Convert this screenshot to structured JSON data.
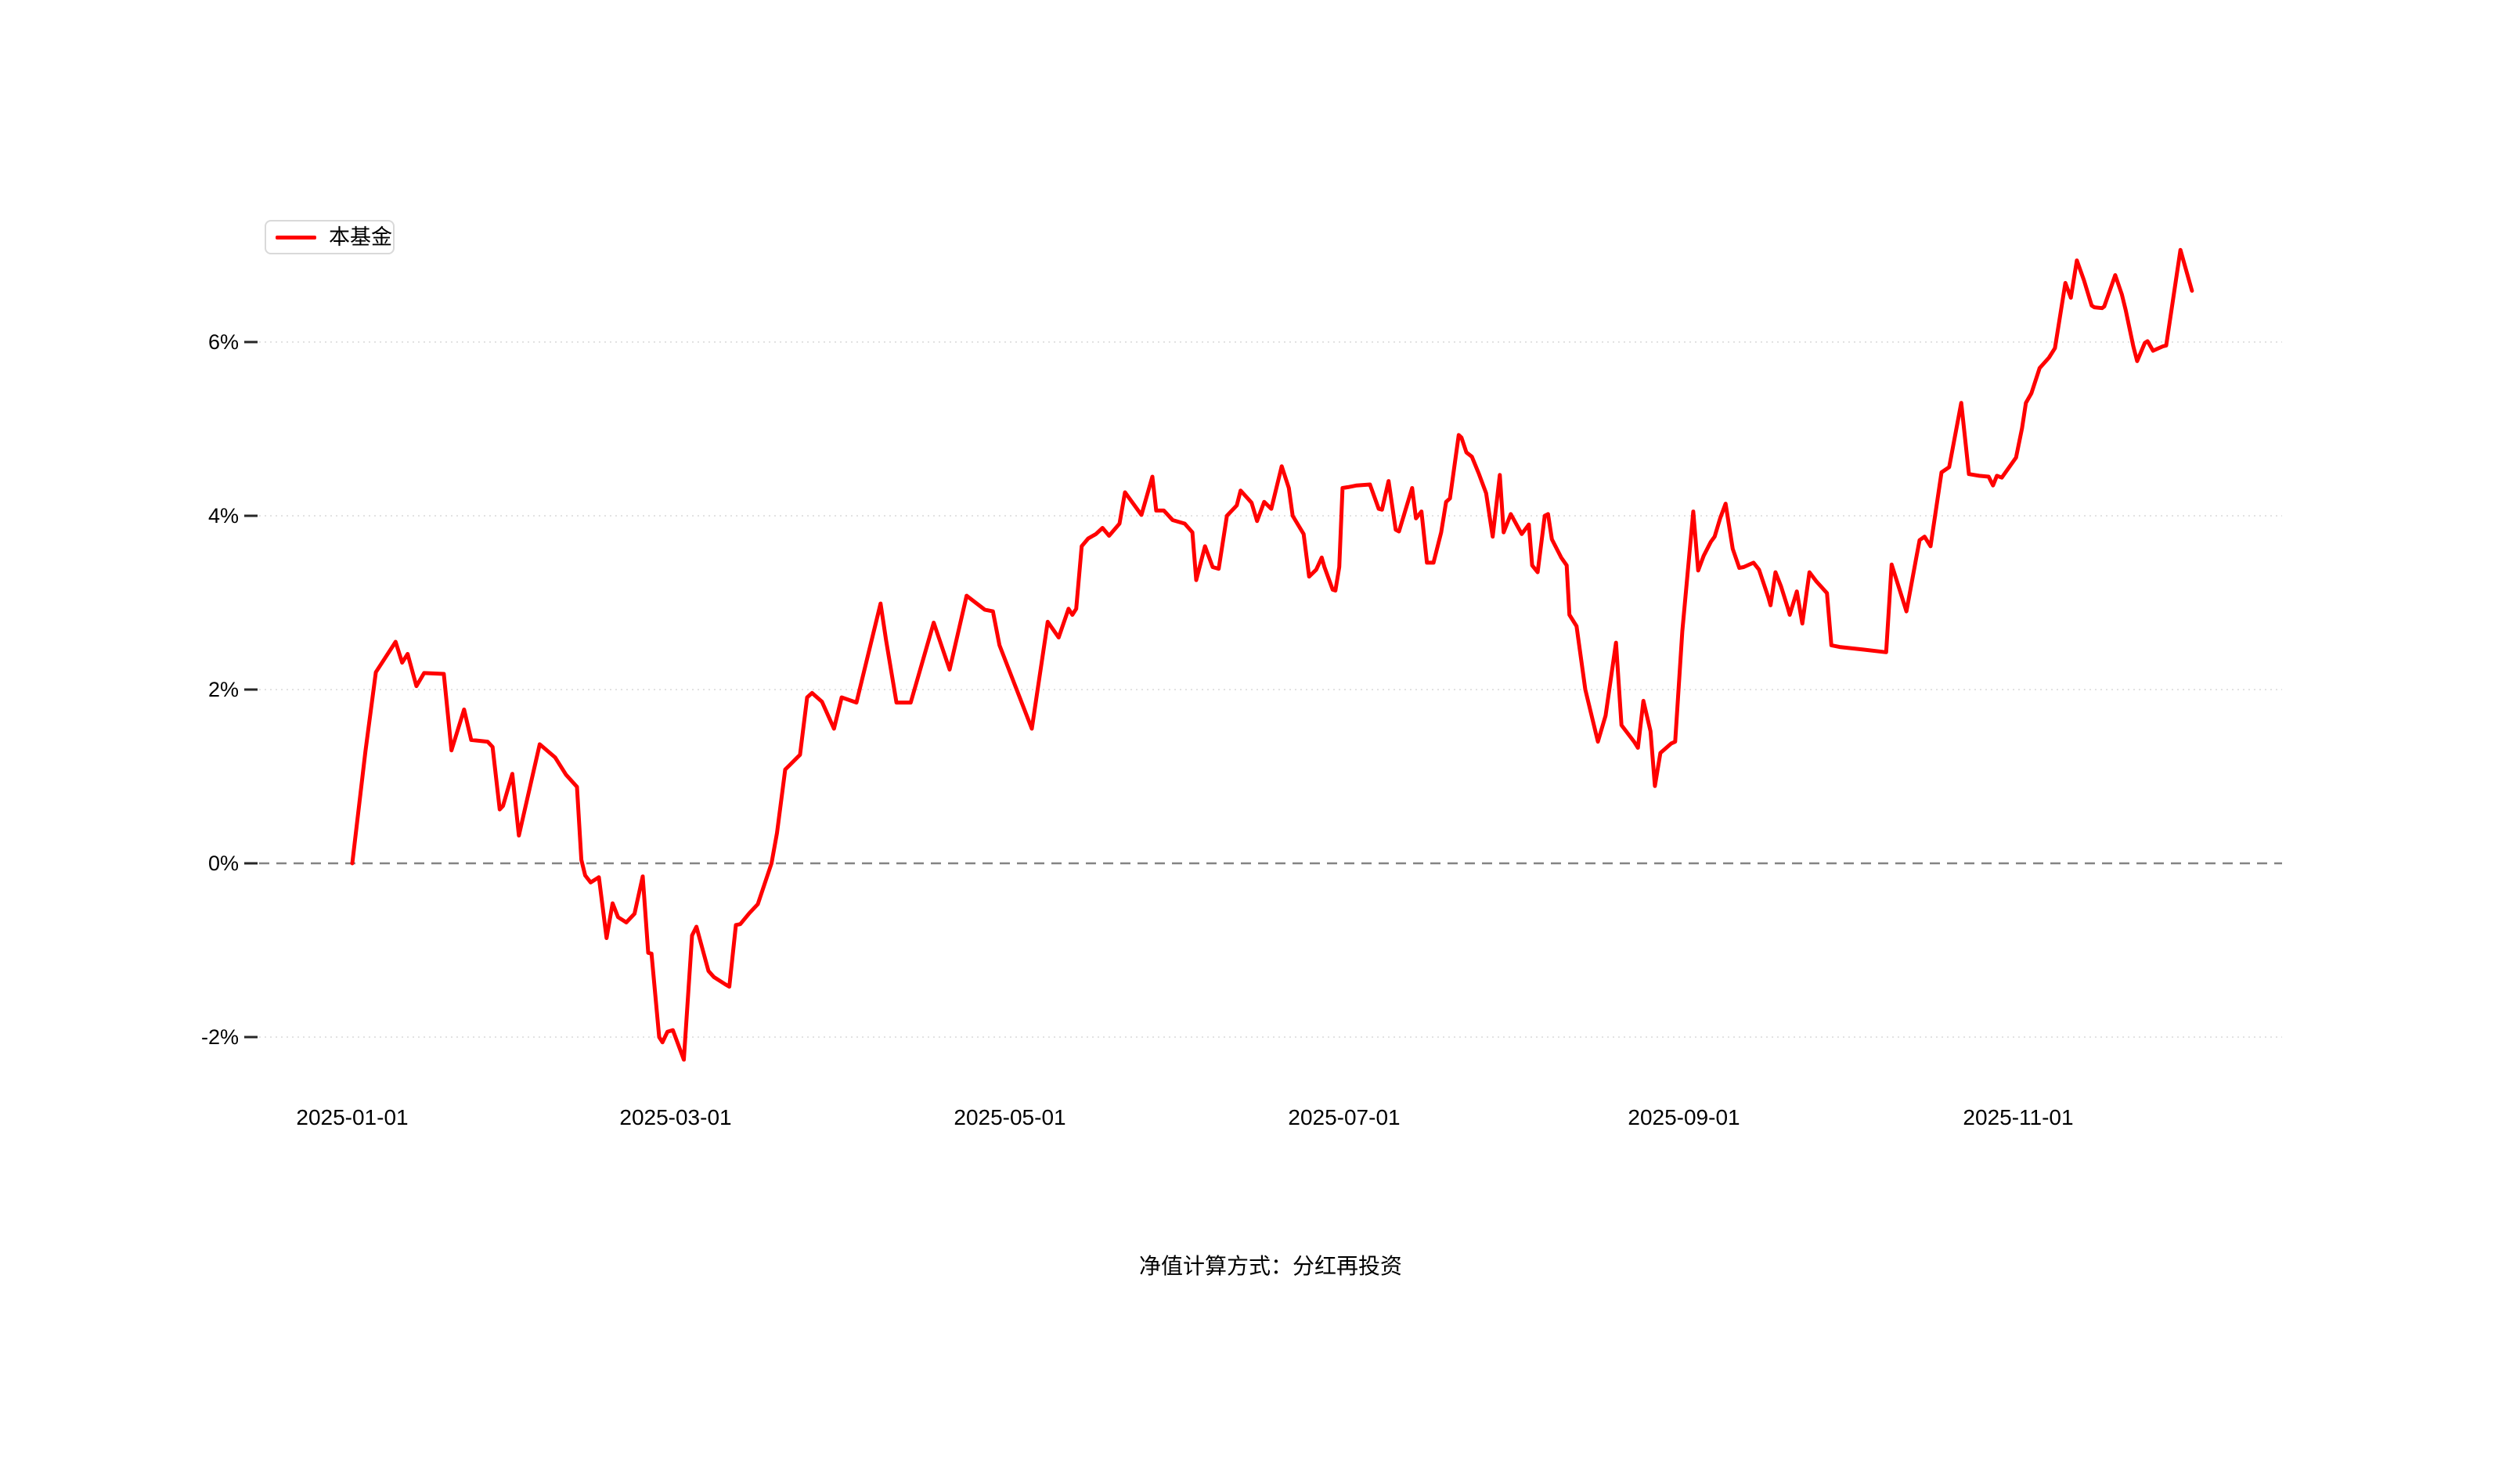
{
  "legend": {
    "label": "本基金"
  },
  "footer": {
    "caption": "净值计算方式：分红再投资"
  },
  "chart_data": {
    "type": "line",
    "title": "",
    "xlabel": "",
    "ylabel": "",
    "unit": "%",
    "grid": true,
    "legend_position": "top-left",
    "x_axis": {
      "ticks": [
        {
          "day": 0,
          "label": "2025-01-01"
        },
        {
          "day": 59,
          "label": "2025-03-01"
        },
        {
          "day": 120,
          "label": "2025-05-01"
        },
        {
          "day": 181,
          "label": "2025-07-01"
        },
        {
          "day": 243,
          "label": "2025-09-01"
        },
        {
          "day": 304,
          "label": "2025-11-01"
        }
      ],
      "range_days": [
        -17,
        352
      ]
    },
    "y_axis": {
      "ticks": [
        {
          "v": 6,
          "label": "6%"
        },
        {
          "v": 4,
          "label": "4%"
        },
        {
          "v": 2,
          "label": "2%"
        },
        {
          "v": 0,
          "label": "0%"
        },
        {
          "v": -2,
          "label": "-2%"
        }
      ],
      "ylim": [
        -3.1,
        7.2
      ]
    },
    "zero_line": {
      "style": "dashed",
      "color": "#848484"
    },
    "gridline_color": "#e2e2e2",
    "colors": {
      "series_red": "#ff0000",
      "text": "#000000"
    },
    "series": [
      {
        "name": "本基金",
        "color": "#ff0000",
        "points": [
          [
            0,
            0
          ],
          [
            2.4,
            1.29
          ],
          [
            4.3,
            2.2
          ],
          [
            7.9,
            2.55
          ],
          [
            9.1,
            2.31
          ],
          [
            10.1,
            2.41
          ],
          [
            11.7,
            2.04
          ],
          [
            13.1,
            2.19
          ],
          [
            16.7,
            2.18
          ],
          [
            18.1,
            1.3
          ],
          [
            20.4,
            1.77
          ],
          [
            21.7,
            1.42
          ],
          [
            24.7,
            1.4
          ],
          [
            25.6,
            1.34
          ],
          [
            26.9,
            0.62
          ],
          [
            27.5,
            0.66
          ],
          [
            29.2,
            1.03
          ],
          [
            30.4,
            0.32
          ],
          [
            34.2,
            1.37
          ],
          [
            37,
            1.22
          ],
          [
            39,
            1.02
          ],
          [
            41,
            0.88
          ],
          [
            41.8,
            0.04
          ],
          [
            42.5,
            -0.14
          ],
          [
            43.5,
            -0.22
          ],
          [
            45,
            -0.16
          ],
          [
            46.4,
            -0.86
          ],
          [
            47.5,
            -0.46
          ],
          [
            48.5,
            -0.62
          ],
          [
            50,
            -0.68
          ],
          [
            51.5,
            -0.58
          ],
          [
            53,
            -0.15
          ],
          [
            54,
            -1.03
          ],
          [
            54.6,
            -1.04
          ],
          [
            56,
            -2
          ],
          [
            56.6,
            -2.06
          ],
          [
            57.5,
            -1.94
          ],
          [
            58.5,
            -1.92
          ],
          [
            60.5,
            -2.26
          ],
          [
            62,
            -0.83
          ],
          [
            62.8,
            -0.73
          ],
          [
            65,
            -1.24
          ],
          [
            66,
            -1.31
          ],
          [
            68,
            -1.39
          ],
          [
            68.8,
            -1.42
          ],
          [
            70,
            -0.71
          ],
          [
            70.8,
            -0.7
          ],
          [
            72.5,
            -0.57
          ],
          [
            74,
            -0.47
          ],
          [
            76.5,
            0
          ],
          [
            77.5,
            0.35
          ],
          [
            79,
            1.08
          ],
          [
            79.8,
            1.13
          ],
          [
            81.7,
            1.25
          ],
          [
            83,
            1.91
          ],
          [
            83.9,
            1.96
          ],
          [
            85.7,
            1.86
          ],
          [
            87.9,
            1.55
          ],
          [
            89.3,
            1.91
          ],
          [
            92,
            1.85
          ],
          [
            96.4,
            2.99
          ],
          [
            97.4,
            2.57
          ],
          [
            99.3,
            1.85
          ],
          [
            101.9,
            1.85
          ],
          [
            106.1,
            2.77
          ],
          [
            109,
            2.23
          ],
          [
            112.1,
            3.08
          ],
          [
            115.4,
            2.92
          ],
          [
            116.9,
            2.9
          ],
          [
            118.1,
            2.51
          ],
          [
            124,
            1.55
          ],
          [
            126.9,
            2.78
          ],
          [
            128.9,
            2.6
          ],
          [
            130.7,
            2.93
          ],
          [
            131.4,
            2.86
          ],
          [
            132.1,
            2.93
          ],
          [
            133.1,
            3.65
          ],
          [
            134.3,
            3.74
          ],
          [
            135.7,
            3.79
          ],
          [
            136.9,
            3.86
          ],
          [
            138.1,
            3.77
          ],
          [
            140,
            3.91
          ],
          [
            141,
            4.27
          ],
          [
            144,
            4.01
          ],
          [
            146,
            4.45
          ],
          [
            146.7,
            4.06
          ],
          [
            148.1,
            4.06
          ],
          [
            149.7,
            3.95
          ],
          [
            151.9,
            3.91
          ],
          [
            153.3,
            3.81
          ],
          [
            154,
            3.26
          ],
          [
            155.6,
            3.65
          ],
          [
            157,
            3.41
          ],
          [
            158.1,
            3.39
          ],
          [
            159.6,
            4
          ],
          [
            161.4,
            4.12
          ],
          [
            162.1,
            4.29
          ],
          [
            163.4,
            4.2
          ],
          [
            164.1,
            4.15
          ],
          [
            165.1,
            3.94
          ],
          [
            166.4,
            4.16
          ],
          [
            167.7,
            4.08
          ],
          [
            169.6,
            4.57
          ],
          [
            170.9,
            4.32
          ],
          [
            171.6,
            4
          ],
          [
            173.6,
            3.79
          ],
          [
            174.6,
            3.3
          ],
          [
            175.9,
            3.38
          ],
          [
            176.9,
            3.52
          ],
          [
            177.4,
            3.41
          ],
          [
            178.9,
            3.15
          ],
          [
            179.4,
            3.14
          ],
          [
            180.1,
            3.41
          ],
          [
            180.7,
            4.32
          ],
          [
            181.7,
            4.33
          ],
          [
            183.3,
            4.35
          ],
          [
            185.7,
            4.36
          ],
          [
            187.3,
            4.08
          ],
          [
            187.9,
            4.07
          ],
          [
            189.1,
            4.4
          ],
          [
            190.4,
            3.84
          ],
          [
            191,
            3.82
          ],
          [
            193.4,
            4.32
          ],
          [
            194.1,
            3.97
          ],
          [
            195.1,
            4.05
          ],
          [
            196.1,
            3.46
          ],
          [
            197.3,
            3.46
          ],
          [
            198.7,
            3.81
          ],
          [
            199.6,
            4.16
          ],
          [
            200.3,
            4.2
          ],
          [
            201.9,
            4.93
          ],
          [
            202.4,
            4.9
          ],
          [
            203.3,
            4.73
          ],
          [
            204.3,
            4.68
          ],
          [
            205.6,
            4.48
          ],
          [
            206.9,
            4.26
          ],
          [
            208.1,
            3.76
          ],
          [
            209.4,
            4.47
          ],
          [
            210.1,
            3.81
          ],
          [
            211.4,
            4.02
          ],
          [
            213.4,
            3.79
          ],
          [
            214.7,
            3.9
          ],
          [
            215.3,
            3.43
          ],
          [
            216.3,
            3.35
          ],
          [
            217.6,
            4
          ],
          [
            218.2,
            4.02
          ],
          [
            218.9,
            3.73
          ],
          [
            220.6,
            3.52
          ],
          [
            221.6,
            3.43
          ],
          [
            222.1,
            2.86
          ],
          [
            223.4,
            2.73
          ],
          [
            225,
            2
          ],
          [
            227.3,
            1.4
          ],
          [
            228.7,
            1.7
          ],
          [
            230.6,
            2.54
          ],
          [
            231.6,
            1.59
          ],
          [
            233.9,
            1.4
          ],
          [
            234.6,
            1.33
          ],
          [
            235.6,
            1.87
          ],
          [
            236.9,
            1.52
          ],
          [
            237.7,
            0.89
          ],
          [
            238.7,
            1.27
          ],
          [
            240.7,
            1.38
          ],
          [
            241.4,
            1.4
          ],
          [
            242.7,
            2.67
          ],
          [
            244.7,
            4.05
          ],
          [
            245.6,
            3.37
          ],
          [
            246.6,
            3.54
          ],
          [
            247.9,
            3.7
          ],
          [
            248.6,
            3.76
          ],
          [
            249.6,
            3.97
          ],
          [
            250.6,
            4.14
          ],
          [
            251.9,
            3.62
          ],
          [
            253.1,
            3.4
          ],
          [
            253.9,
            3.41
          ],
          [
            255.7,
            3.46
          ],
          [
            256.7,
            3.38
          ],
          [
            258.4,
            3.06
          ],
          [
            258.8,
            2.97
          ],
          [
            259.7,
            3.35
          ],
          [
            260.7,
            3.19
          ],
          [
            261.9,
            2.95
          ],
          [
            262.3,
            2.86
          ],
          [
            263.6,
            3.13
          ],
          [
            264.6,
            2.76
          ],
          [
            265.9,
            3.35
          ],
          [
            267.1,
            3.25
          ],
          [
            269.1,
            3.11
          ],
          [
            269.9,
            2.51
          ],
          [
            271.4,
            2.49
          ],
          [
            275.7,
            2.46
          ],
          [
            279.9,
            2.43
          ],
          [
            280.9,
            3.44
          ],
          [
            283.6,
            2.9
          ],
          [
            285.4,
            3.52
          ],
          [
            286,
            3.72
          ],
          [
            286.9,
            3.76
          ],
          [
            288,
            3.65
          ],
          [
            290,
            4.5
          ],
          [
            291.4,
            4.56
          ],
          [
            293.6,
            5.3
          ],
          [
            295,
            4.48
          ],
          [
            296.9,
            4.46
          ],
          [
            298.6,
            4.45
          ],
          [
            299.4,
            4.35
          ],
          [
            300.1,
            4.46
          ],
          [
            301,
            4.44
          ],
          [
            303.6,
            4.67
          ],
          [
            304.7,
            5.01
          ],
          [
            305.4,
            5.3
          ],
          [
            306.4,
            5.41
          ],
          [
            307.9,
            5.7
          ],
          [
            309.6,
            5.82
          ],
          [
            310.7,
            5.93
          ],
          [
            312.6,
            6.68
          ],
          [
            313.6,
            6.51
          ],
          [
            314.7,
            6.94
          ],
          [
            316,
            6.71
          ],
          [
            317.4,
            6.42
          ],
          [
            317.9,
            6.4
          ],
          [
            319.3,
            6.39
          ],
          [
            319.7,
            6.41
          ],
          [
            321.7,
            6.77
          ],
          [
            322.9,
            6.55
          ],
          [
            323.6,
            6.37
          ],
          [
            324.3,
            6.16
          ],
          [
            325,
            5.95
          ],
          [
            325.7,
            5.78
          ],
          [
            327.1,
            5.99
          ],
          [
            327.6,
            6.01
          ],
          [
            328.6,
            5.9
          ],
          [
            329.3,
            5.92
          ],
          [
            330.4,
            5.95
          ],
          [
            331,
            5.96
          ],
          [
            333.6,
            7.06
          ],
          [
            335.7,
            6.59
          ]
        ]
      }
    ]
  }
}
